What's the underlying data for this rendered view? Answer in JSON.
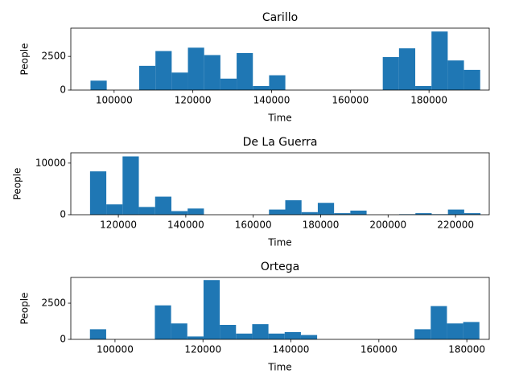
{
  "chart_data": [
    {
      "type": "histogram",
      "title": "Carillo",
      "x_label": "Time",
      "y_label": "People",
      "color": "#1f77b4",
      "bins": [
        94000,
        98125,
        102250,
        106375,
        110500,
        114625,
        118750,
        122875,
        127000,
        131125,
        135250,
        139375,
        143500,
        147625,
        151750,
        155875,
        160000,
        164125,
        168250,
        172375,
        176500,
        180625,
        184750,
        188875,
        193000
      ],
      "values": [
        700,
        0,
        0,
        1800,
        2900,
        1300,
        3150,
        2600,
        850,
        2750,
        300,
        1100,
        0,
        0,
        0,
        0,
        0,
        0,
        2450,
        3100,
        300,
        4350,
        2200,
        1500
      ],
      "xlim": [
        89000,
        195300
      ],
      "ylim": [
        0,
        4600
      ],
      "xticks": [
        100000,
        120000,
        140000,
        160000,
        180000
      ],
      "yticks": [
        0,
        2500
      ]
    },
    {
      "type": "histogram",
      "title": "De La Guerra",
      "x_label": "Time",
      "y_label": "People",
      "color": "#1f77b4",
      "bins": [
        111600,
        116425,
        121250,
        126075,
        130900,
        135725,
        140550,
        145375,
        150200,
        155025,
        159850,
        164675,
        169500,
        174325,
        179150,
        183975,
        188800,
        193625,
        198450,
        203275,
        208100,
        212925,
        217750,
        222575,
        227400
      ],
      "values": [
        8400,
        2000,
        11300,
        1500,
        3500,
        700,
        1200,
        0,
        0,
        0,
        0,
        1000,
        2800,
        500,
        2300,
        300,
        800,
        0,
        0,
        100,
        300,
        100,
        1000,
        300
      ],
      "xlim": [
        105900,
        230000
      ],
      "ylim": [
        0,
        12000
      ],
      "xticks": [
        120000,
        140000,
        160000,
        180000,
        200000,
        220000
      ],
      "yticks": [
        0,
        10000
      ]
    },
    {
      "type": "histogram",
      "title": "Ortega",
      "x_label": "Time",
      "y_label": "People",
      "color": "#1f77b4",
      "bins": [
        94300,
        97990,
        101680,
        105370,
        109060,
        112750,
        116440,
        120130,
        123820,
        127510,
        131200,
        134890,
        138580,
        142270,
        145960,
        149650,
        153340,
        157030,
        160720,
        164410,
        168100,
        171790,
        175480,
        179170,
        182860
      ],
      "values": [
        700,
        0,
        0,
        0,
        2350,
        1100,
        200,
        4100,
        1000,
        400,
        1050,
        400,
        500,
        300,
        0,
        0,
        0,
        0,
        0,
        0,
        700,
        2300,
        1100,
        1200
      ],
      "xlim": [
        89950,
        185100
      ],
      "ylim": [
        0,
        4280
      ],
      "xticks": [
        100000,
        120000,
        140000,
        160000,
        180000
      ],
      "yticks": [
        0,
        2500
      ]
    }
  ]
}
